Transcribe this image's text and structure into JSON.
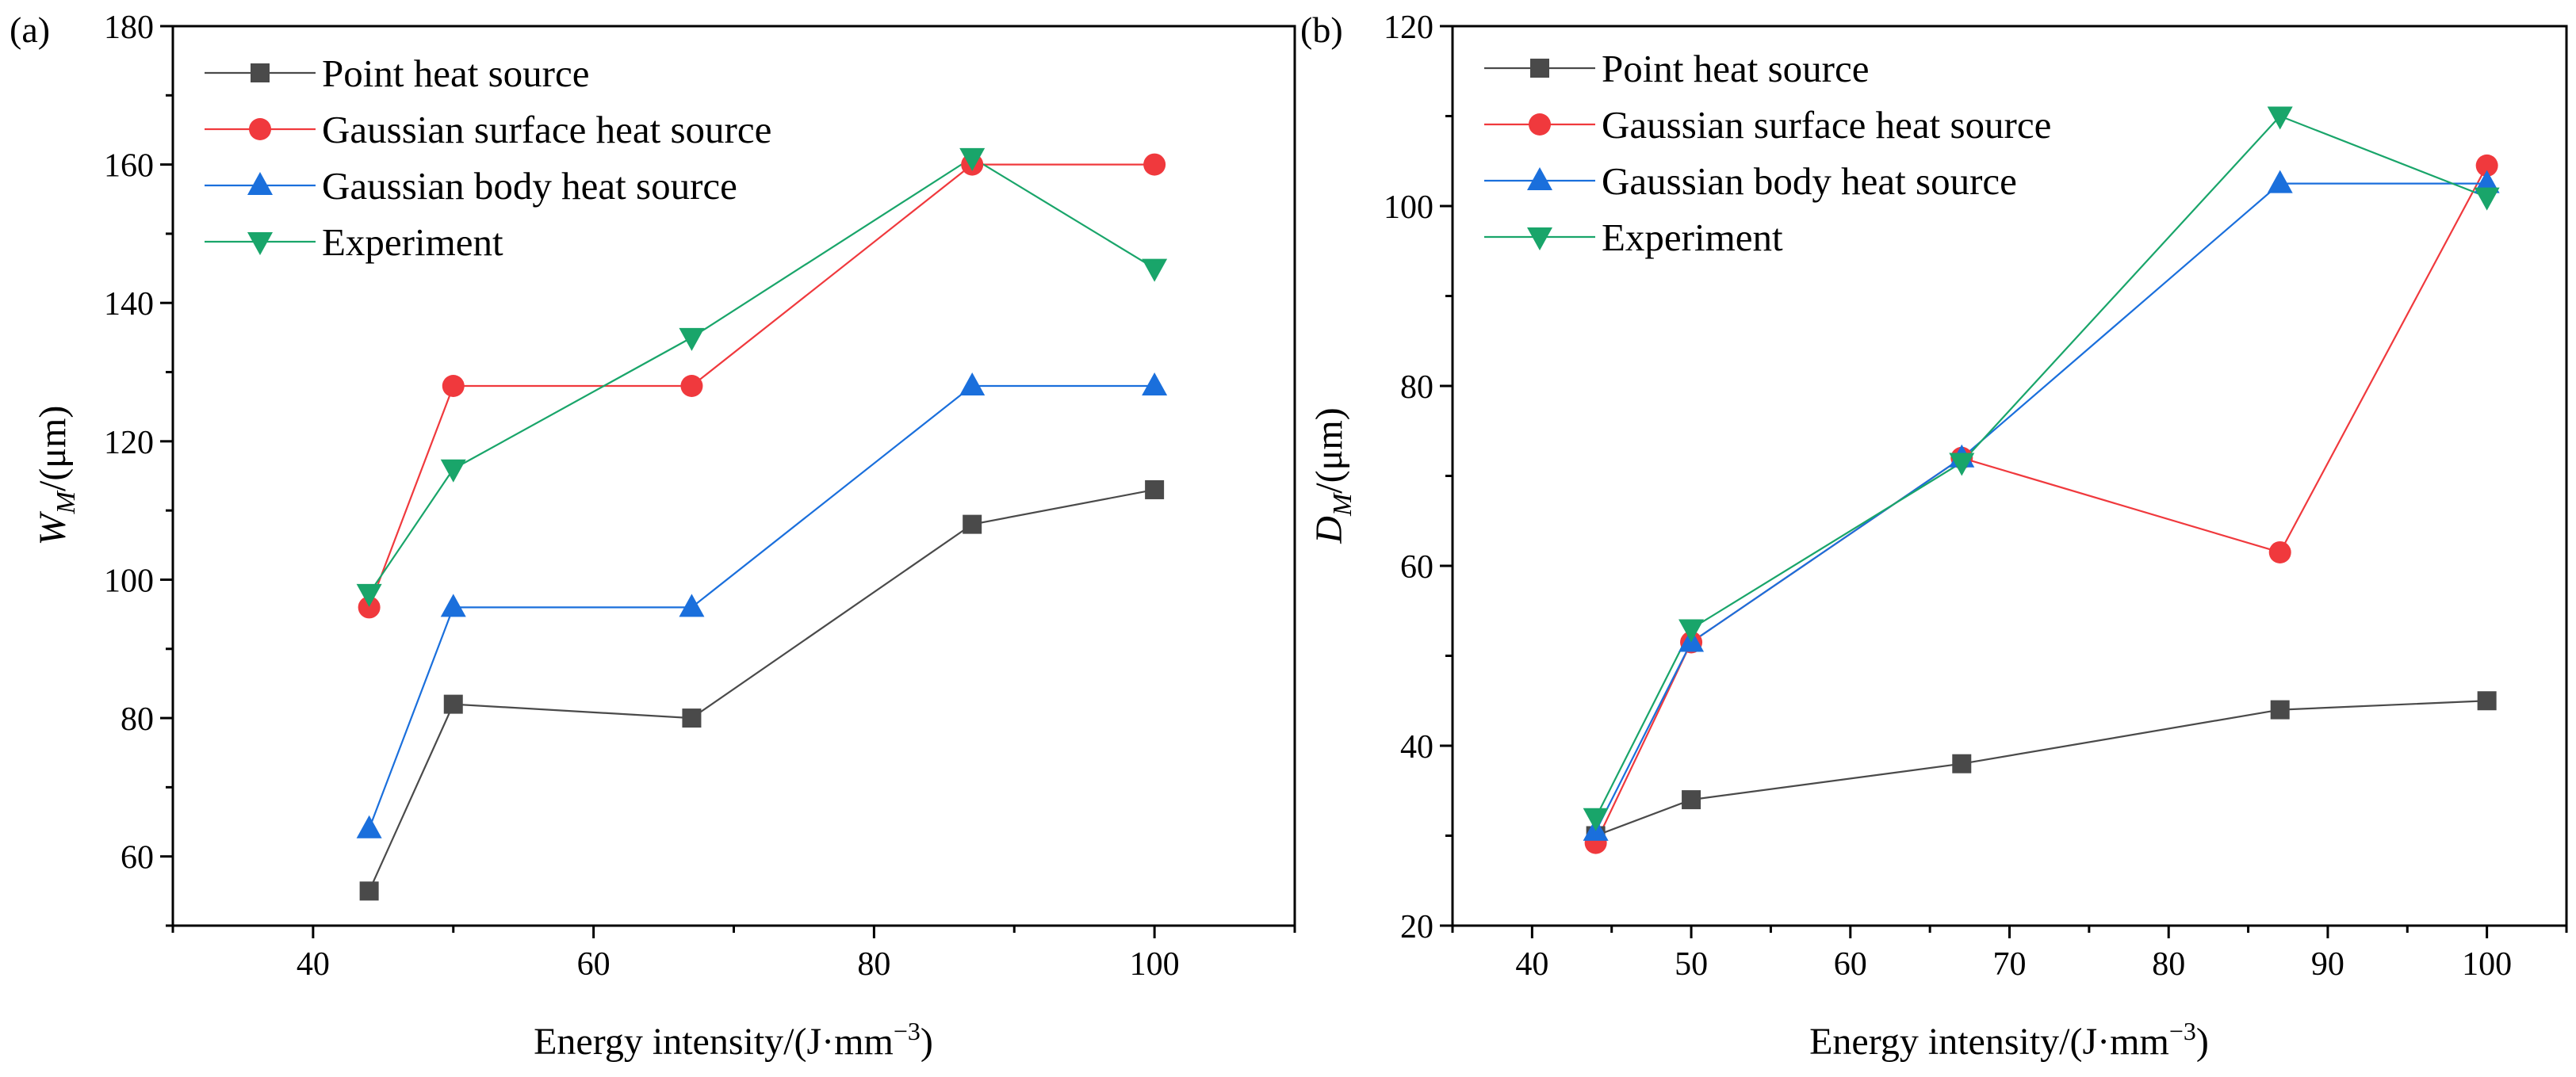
{
  "chart_data": [
    {
      "panel": "(a)",
      "type": "line",
      "xlabel": "Energy intensity/(J·mm",
      "xlabel_sup": "−3",
      "xlabel_close": ")",
      "ylabel_main": "W",
      "ylabel_sub": "M",
      "ylabel_unit": "/(μm)",
      "xlim": [
        30,
        110
      ],
      "ylim": [
        50,
        180
      ],
      "xticks": [
        40,
        60,
        80,
        100
      ],
      "xticks_minor": [
        30,
        50,
        70,
        90,
        110
      ],
      "yticks": [
        60,
        80,
        100,
        120,
        140,
        160,
        180
      ],
      "yticks_minor": [
        50,
        70,
        90,
        110,
        130,
        150,
        170
      ],
      "legend_position": "top-left",
      "series": [
        {
          "name": "Point heat source",
          "color": "#4a4a4a",
          "marker": "square",
          "x": [
            44,
            50,
            67,
            87,
            100
          ],
          "y": [
            55,
            82,
            80,
            108,
            113
          ]
        },
        {
          "name": "Gaussian surface heat source",
          "color": "#f0393d",
          "marker": "circle",
          "x": [
            44,
            50,
            67,
            87,
            100
          ],
          "y": [
            96,
            128,
            128,
            160,
            160
          ]
        },
        {
          "name": "Gaussian body heat source",
          "color": "#1a6fdc",
          "marker": "triangle-up",
          "x": [
            44,
            50,
            67,
            87,
            100
          ],
          "y": [
            64,
            96,
            96,
            128,
            128
          ]
        },
        {
          "name": "Experiment",
          "color": "#19a56a",
          "marker": "triangle-down",
          "x": [
            44,
            50,
            67,
            87,
            100
          ],
          "y": [
            98,
            116,
            135,
            161,
            145
          ]
        }
      ]
    },
    {
      "panel": "(b)",
      "type": "line",
      "xlabel": "Energy intensity/(J·mm",
      "xlabel_sup": "−3",
      "xlabel_close": ")",
      "ylabel_main": "D",
      "ylabel_sub": "M",
      "ylabel_unit": "/(μm)",
      "xlim": [
        35,
        105
      ],
      "ylim": [
        20,
        120
      ],
      "xticks": [
        40,
        50,
        60,
        70,
        80,
        90,
        100
      ],
      "xticks_minor": [
        35,
        45,
        55,
        65,
        75,
        85,
        95,
        105
      ],
      "yticks": [
        20,
        40,
        60,
        80,
        100,
        120
      ],
      "yticks_minor": [
        30,
        50,
        70,
        90,
        110
      ],
      "legend_position": "top-left",
      "series": [
        {
          "name": "Point heat source",
          "color": "#4a4a4a",
          "marker": "square",
          "x": [
            44,
            50,
            67,
            87,
            100
          ],
          "y": [
            30,
            34,
            38,
            44,
            45
          ]
        },
        {
          "name": "Gaussian surface heat source",
          "color": "#f0393d",
          "marker": "circle",
          "x": [
            44,
            50,
            67,
            87,
            100
          ],
          "y": [
            29.2,
            51.5,
            72,
            61.5,
            104.5
          ]
        },
        {
          "name": "Gaussian body heat source",
          "color": "#1a6fdc",
          "marker": "triangle-up",
          "x": [
            44,
            50,
            67,
            87,
            100
          ],
          "y": [
            30.5,
            51.5,
            72,
            102.5,
            102.5
          ]
        },
        {
          "name": "Experiment",
          "color": "#19a56a",
          "marker": "triangle-down",
          "x": [
            44,
            50,
            67,
            87,
            100
          ],
          "y": [
            32,
            53,
            71.5,
            110,
            101
          ]
        }
      ]
    }
  ]
}
